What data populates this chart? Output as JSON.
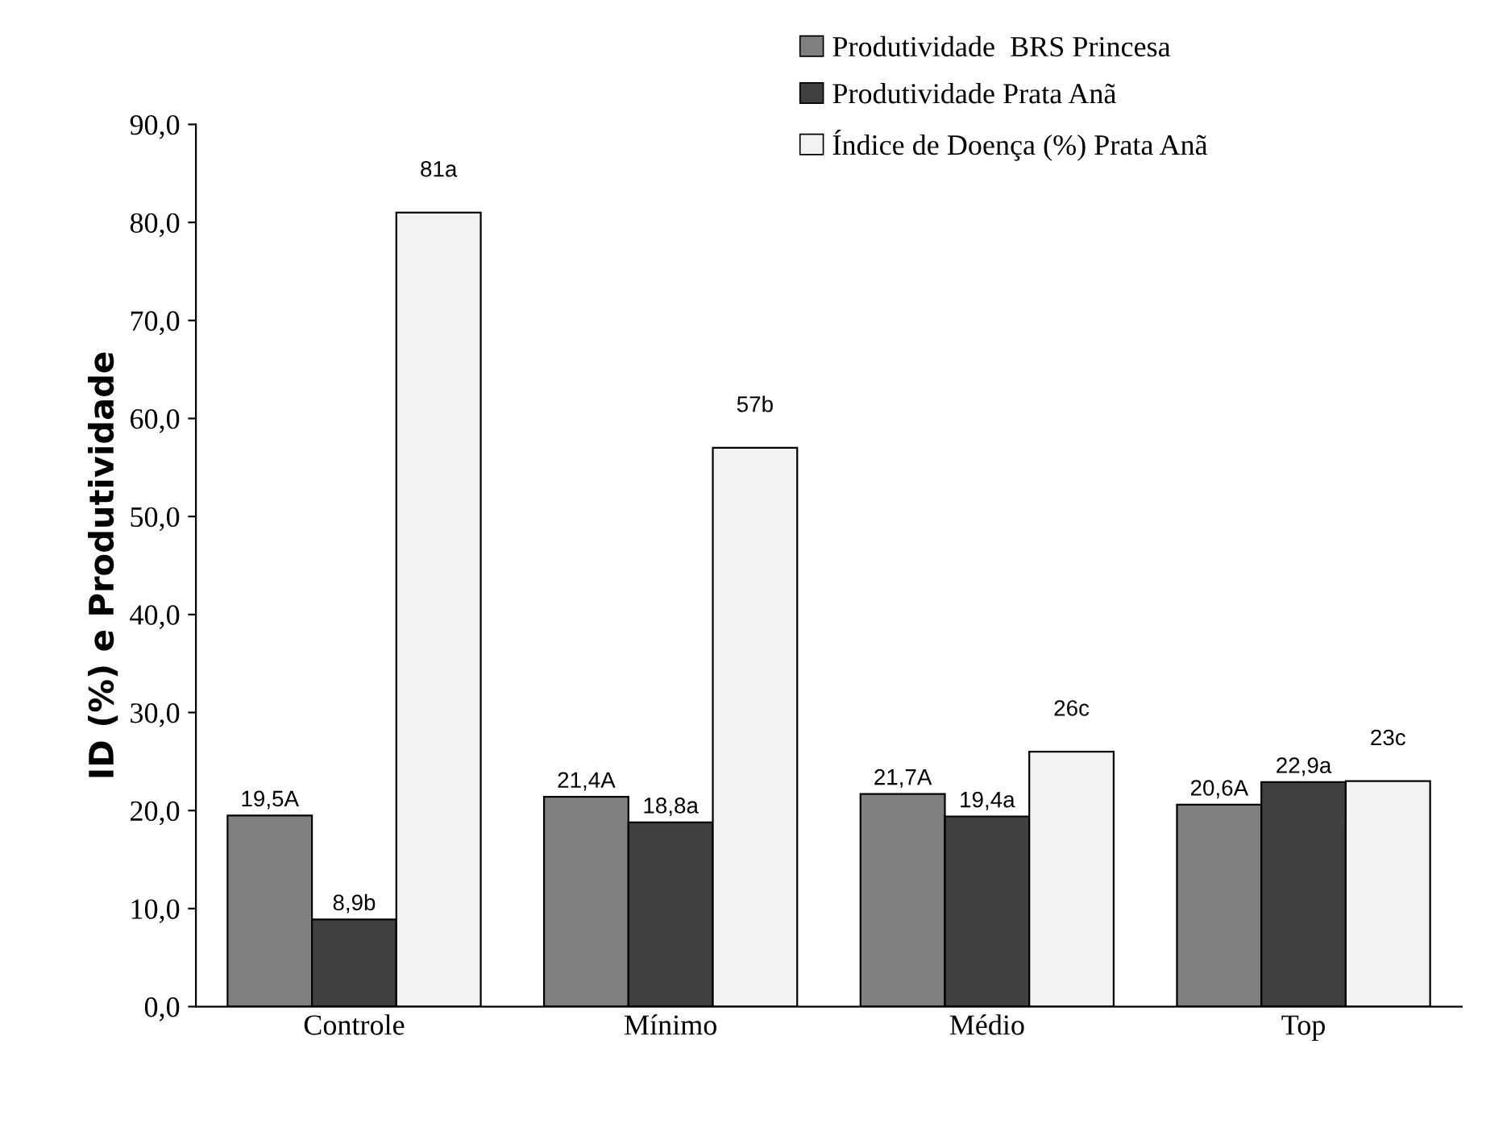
{
  "chart_data": {
    "type": "bar",
    "ylabel": "ID (%) e Produtividade",
    "categories": [
      "Controle",
      "Mínimo",
      "Médio",
      "Top"
    ],
    "series": [
      {
        "name": "Produtividade  BRS Princesa",
        "color": "#808080",
        "values": [
          19.5,
          21.4,
          21.7,
          20.6
        ],
        "value_labels": [
          "19,5A",
          "21,4A",
          "21,7A",
          "20,6A"
        ]
      },
      {
        "name": "Produtividade Prata Anã",
        "color": "#404040",
        "values": [
          8.9,
          18.8,
          19.4,
          22.9
        ],
        "value_labels": [
          "8,9b",
          "18,8a",
          "19,4a",
          "22,9a"
        ]
      },
      {
        "name": "Índice de Doença (%) Prata Anã",
        "color": "#f2f2f2",
        "values": [
          81,
          57,
          26,
          23
        ],
        "value_labels": [
          "81a",
          "57b",
          "26c",
          "23c"
        ]
      }
    ],
    "ylim": [
      0,
      90
    ],
    "yticks": [
      {
        "value": 0,
        "label": "0,0"
      },
      {
        "value": 10,
        "label": "10,0"
      },
      {
        "value": 20,
        "label": "20,0"
      },
      {
        "value": 30,
        "label": "30,0"
      },
      {
        "value": 40,
        "label": "40,0"
      },
      {
        "value": 50,
        "label": "50,0"
      },
      {
        "value": 60,
        "label": "60,0"
      },
      {
        "value": 70,
        "label": "70,0"
      },
      {
        "value": 80,
        "label": "80,0"
      },
      {
        "value": 90,
        "label": "90,0"
      }
    ],
    "grid": false,
    "legend": "top right"
  }
}
